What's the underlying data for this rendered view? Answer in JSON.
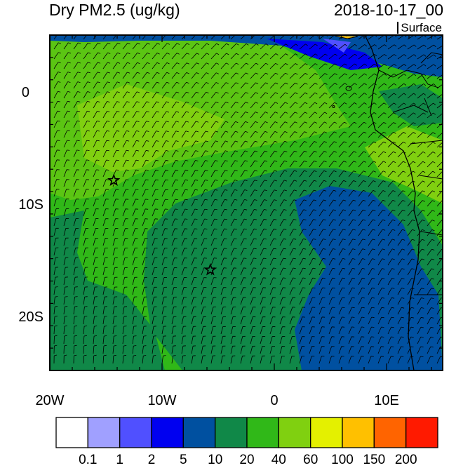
{
  "header": {
    "title": "Dry PM2.5 (ug/kg)",
    "datetime": "2018-10-17_00",
    "level": "Surface"
  },
  "map": {
    "lon_range": [
      -20,
      15
    ],
    "lat_range": [
      -25,
      5
    ],
    "x_tick_labels": [
      "20W",
      "10W",
      "0",
      "10E"
    ],
    "y_tick_labels": [
      "0",
      "10S",
      "20S"
    ],
    "markers": [
      {
        "name": "star",
        "lon": -14.3,
        "lat": -8.0
      },
      {
        "name": "star",
        "lon": -5.7,
        "lat": -16.0
      }
    ]
  },
  "colorbar": {
    "labels": [
      "0.1",
      "1",
      "2",
      "5",
      "10",
      "20",
      "40",
      "60",
      "100",
      "150",
      "200"
    ],
    "colors": [
      "#ffffff",
      "#a0a0ff",
      "#5050ff",
      "#0000f0",
      "#0050a0",
      "#108848",
      "#30b818",
      "#80d010",
      "#e4f000",
      "#ffc000",
      "#ff6400",
      "#ff1a00"
    ]
  }
}
